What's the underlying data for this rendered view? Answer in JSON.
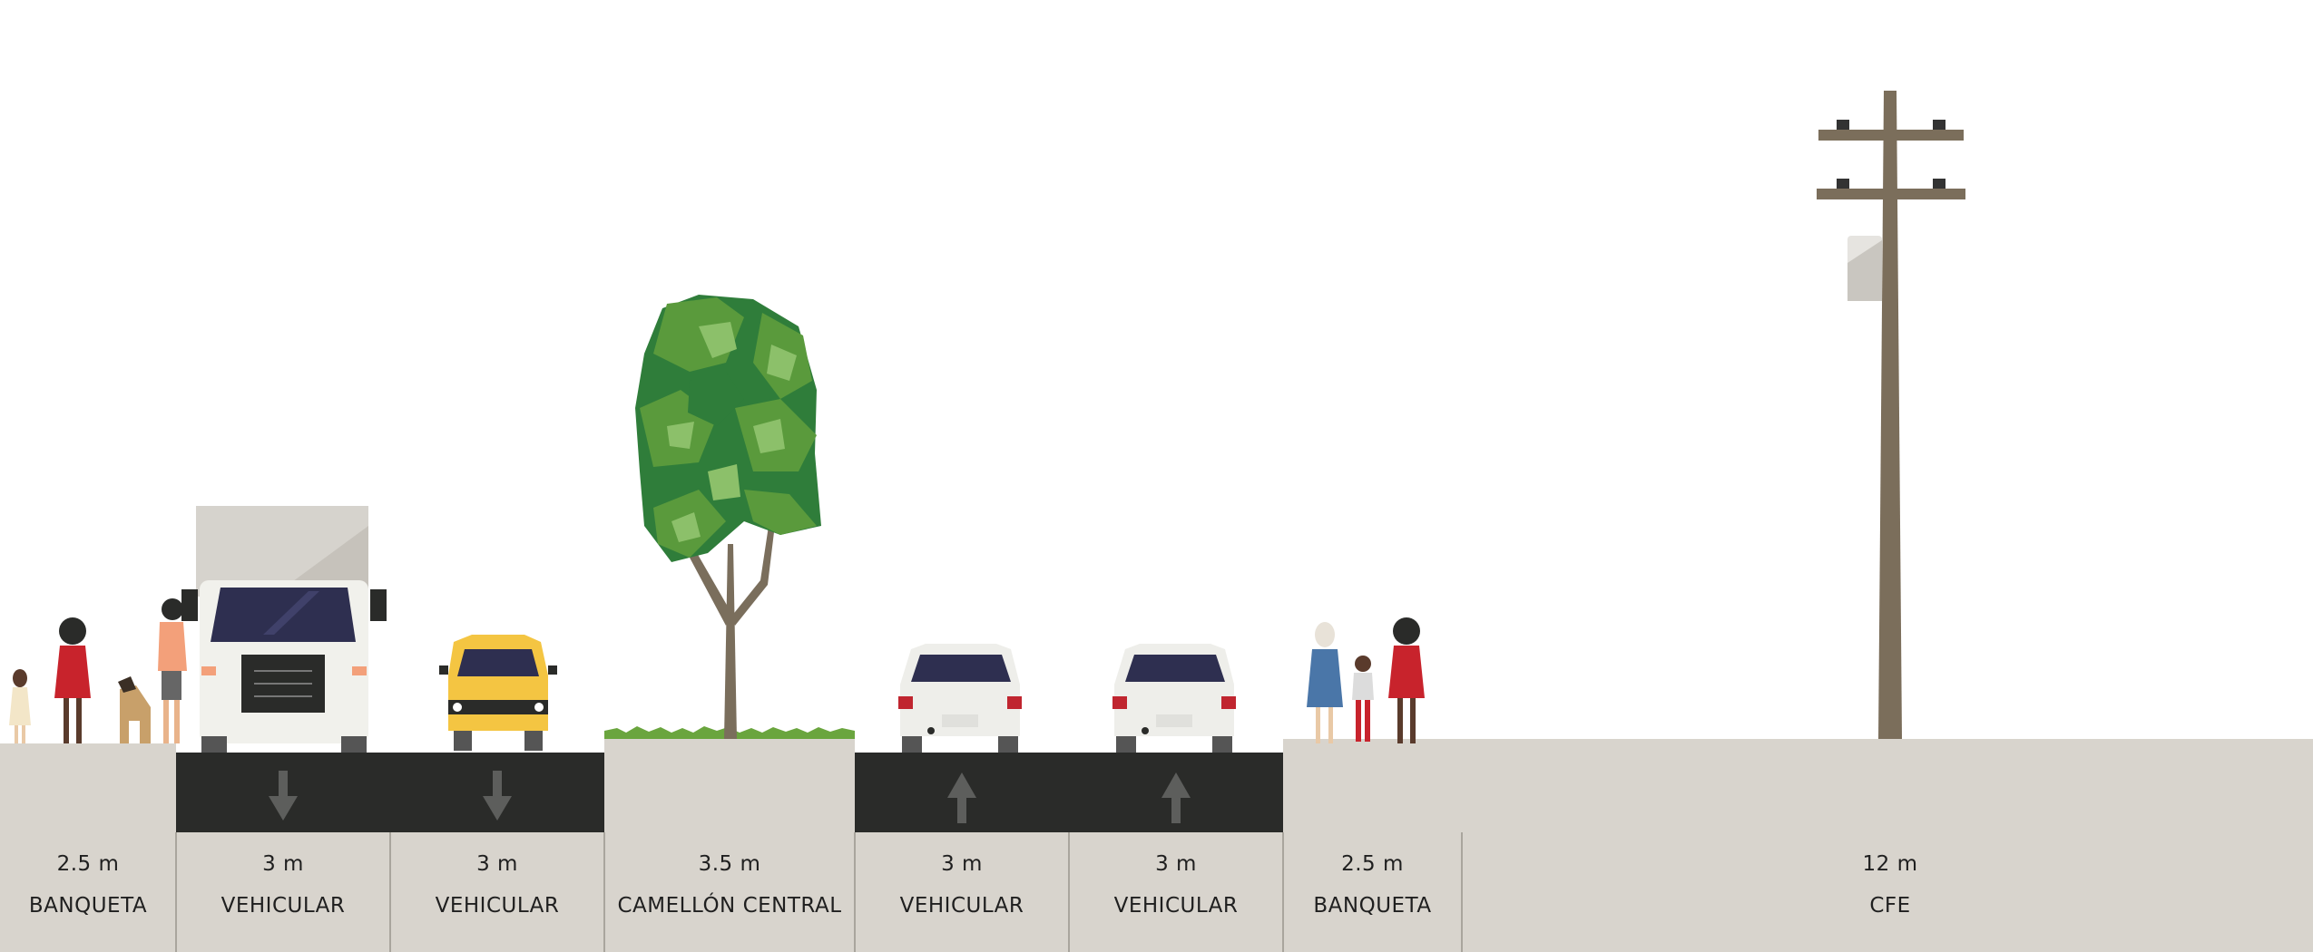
{
  "colors": {
    "background": "#ffffff",
    "ground": "#d8d4cd",
    "asphalt": "#2a2b29",
    "arrow": "#5d5e5c",
    "divider": "#a9a59d",
    "grass": "#6aa53e",
    "tree_dark": "#2f7d3a",
    "tree_mid": "#5a9a3c",
    "tree_light": "#8cc06a",
    "trunk": "#7a6e5c",
    "pole": "#7b6e5b",
    "truck_body": "#f1f1ec",
    "truck_box": "#d6d3cd",
    "windshield": "#2e2f50",
    "taxi": "#f4c542",
    "car": "#eeeeea",
    "tail_light": "#c0252f"
  },
  "segments": [
    {
      "width": "2.5 m",
      "name": "BANQUETA"
    },
    {
      "width": "3 m",
      "name": "VEHICULAR",
      "direction": "down"
    },
    {
      "width": "3 m",
      "name": "VEHICULAR",
      "direction": "down"
    },
    {
      "width": "3.5 m",
      "name": "CAMELLÓN CENTRAL"
    },
    {
      "width": "3 m",
      "name": "VEHICULAR",
      "direction": "up"
    },
    {
      "width": "3 m",
      "name": "VEHICULAR",
      "direction": "up"
    },
    {
      "width": "2.5 m",
      "name": "BANQUETA"
    },
    {
      "width": "12 m",
      "name": "CFE"
    }
  ],
  "icons": {
    "lane_arrow_down": "arrow-down-icon",
    "lane_arrow_up": "arrow-up-icon",
    "tree": "tree-icon",
    "utility_pole": "utility-pole-icon",
    "truck": "box-truck-icon",
    "taxi": "taxi-icon",
    "car": "car-icon",
    "pedestrian": "pedestrian-icon",
    "dog": "dog-icon"
  }
}
